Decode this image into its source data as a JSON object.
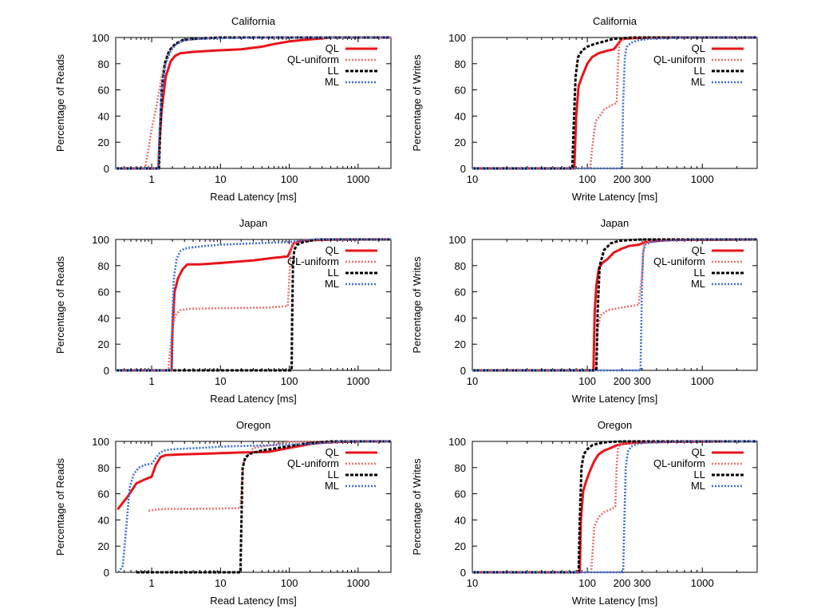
{
  "legend_placement": "top-right",
  "chart_data": [
    {
      "type": "line",
      "title": "California",
      "xlabel": "Read Latency [ms]",
      "ylabel": "Percentage of Reads",
      "xscale": "log",
      "xlim": [
        0.3,
        3000
      ],
      "ylim": [
        0,
        100
      ],
      "xticks": [
        1,
        10,
        100,
        1000
      ],
      "xtick_labels": [
        "1",
        "10",
        "100",
        "1000"
      ],
      "yticks": [
        0,
        20,
        40,
        60,
        80,
        100
      ],
      "ytick_labels": [
        "0",
        "20",
        "40",
        "60",
        "80",
        "100"
      ],
      "series": [
        {
          "name": "QL",
          "color": "#e8141b",
          "style": "solid",
          "x": [
            0.3,
            1.25,
            1.3,
            1.4,
            1.6,
            1.9,
            2.2,
            2.6,
            4,
            8,
            20,
            40,
            60,
            100,
            150,
            250,
            400,
            3000
          ],
          "y": [
            0,
            0,
            20,
            45,
            70,
            82,
            86,
            88,
            89,
            90,
            91,
            93,
            95,
            97,
            98,
            99,
            100,
            100
          ]
        },
        {
          "name": "QL-uniform",
          "color": "#f07070",
          "style": "dotted",
          "x": [
            0.3,
            0.8,
            0.9,
            1.0,
            1.2,
            1.4,
            1.6,
            1.8,
            2.2,
            3,
            5,
            10,
            3000
          ],
          "y": [
            0,
            0,
            15,
            30,
            50,
            70,
            82,
            90,
            95,
            98,
            99,
            100,
            100
          ]
        },
        {
          "name": "LL",
          "color": "#000000",
          "style": "dashed",
          "x": [
            0.3,
            1.28,
            1.33,
            1.4,
            1.55,
            1.8,
            2.2,
            2.8,
            4,
            6,
            10,
            3000
          ],
          "y": [
            0,
            0,
            30,
            60,
            80,
            90,
            95,
            98,
            99,
            99.5,
            100,
            100
          ]
        },
        {
          "name": "ML",
          "color": "#3a6fd8",
          "style": "dotted",
          "x": [
            0.3,
            1.25,
            1.3,
            1.4,
            1.6,
            1.9,
            2.3,
            3,
            5,
            10,
            50,
            3000
          ],
          "y": [
            0,
            0,
            30,
            60,
            80,
            90,
            95,
            98,
            99,
            99.5,
            100,
            100
          ]
        }
      ]
    },
    {
      "type": "line",
      "title": "California",
      "xlabel": "Write Latency [ms]",
      "ylabel": "Percentage of Writes",
      "xscale": "log",
      "xlim": [
        10,
        3000
      ],
      "ylim": [
        0,
        100
      ],
      "xticks": [
        10,
        100,
        200,
        300,
        1000
      ],
      "xtick_labels": [
        "10",
        "100",
        "200",
        "300",
        "1000"
      ],
      "yticks": [
        0,
        20,
        40,
        60,
        80,
        100
      ],
      "ytick_labels": [
        "0",
        "20",
        "40",
        "60",
        "80",
        "100"
      ],
      "series": [
        {
          "name": "QL",
          "color": "#e8141b",
          "style": "solid",
          "x": [
            10,
            77,
            80,
            84,
            90,
            100,
            110,
            125,
            150,
            170,
            185,
            200,
            260,
            350,
            600,
            3000
          ],
          "y": [
            0,
            0,
            40,
            63,
            70,
            80,
            85,
            88,
            90,
            91,
            95,
            99,
            99.5,
            99.8,
            100,
            100
          ]
        },
        {
          "name": "QL-uniform",
          "color": "#f07070",
          "style": "dotted",
          "x": [
            10,
            106,
            110,
            118,
            128,
            140,
            160,
            180,
            185,
            190,
            200,
            230,
            3000
          ],
          "y": [
            0,
            0,
            15,
            36,
            40,
            45,
            48,
            50,
            80,
            95,
            98,
            100,
            100
          ]
        },
        {
          "name": "LL",
          "color": "#000000",
          "style": "dashed",
          "x": [
            10,
            74,
            76,
            79,
            83,
            90,
            100,
            115,
            140,
            170,
            250,
            3000
          ],
          "y": [
            0,
            0,
            30,
            70,
            85,
            90,
            93,
            95,
            97,
            99,
            100,
            100
          ]
        },
        {
          "name": "ML",
          "color": "#3a6fd8",
          "style": "dotted",
          "x": [
            10,
            200,
            205,
            212,
            220,
            240,
            280,
            350,
            500,
            700,
            3000
          ],
          "y": [
            0,
            0,
            50,
            85,
            93,
            96,
            98,
            99,
            99.5,
            100,
            100
          ]
        }
      ]
    },
    {
      "type": "line",
      "title": "Japan",
      "xlabel": "Read Latency [ms]",
      "ylabel": "Percentage of Reads",
      "xscale": "log",
      "xlim": [
        0.3,
        3000
      ],
      "ylim": [
        0,
        100
      ],
      "xticks": [
        1,
        10,
        100,
        1000
      ],
      "xtick_labels": [
        "1",
        "10",
        "100",
        "1000"
      ],
      "yticks": [
        0,
        20,
        40,
        60,
        80,
        100
      ],
      "ytick_labels": [
        "0",
        "20",
        "40",
        "60",
        "80",
        "100"
      ],
      "series": [
        {
          "name": "QL",
          "color": "#e8141b",
          "style": "solid",
          "x": [
            0.3,
            1.95,
            2.0,
            2.15,
            2.4,
            2.8,
            3.3,
            5,
            10,
            30,
            60,
            95,
            105,
            115,
            150,
            250,
            500,
            3000
          ],
          "y": [
            0,
            0,
            30,
            60,
            70,
            77,
            81,
            81,
            82,
            84,
            86,
            87,
            92,
            97,
            99,
            99.5,
            100,
            100
          ]
        },
        {
          "name": "QL-uniform",
          "color": "#f07070",
          "style": "dotted",
          "x": [
            0.3,
            1.75,
            1.85,
            2.0,
            2.2,
            2.6,
            3.5,
            10,
            50,
            95,
            100,
            105,
            110,
            130,
            200,
            3000
          ],
          "y": [
            0,
            0,
            15,
            32,
            42,
            46,
            47,
            47.5,
            48,
            49,
            70,
            90,
            96,
            98,
            99.5,
            100
          ]
        },
        {
          "name": "LL",
          "color": "#000000",
          "style": "dashed",
          "x": [
            0.3,
            108,
            110,
            113,
            118,
            130,
            160,
            250,
            3000
          ],
          "y": [
            0,
            0,
            40,
            80,
            92,
            96,
            98,
            100,
            100
          ]
        },
        {
          "name": "ML",
          "color": "#3a6fd8",
          "style": "dotted",
          "x": [
            0.3,
            1.95,
            2.0,
            2.1,
            2.3,
            2.6,
            3,
            4,
            6,
            10,
            30,
            100,
            200,
            3000
          ],
          "y": [
            0,
            0,
            40,
            70,
            85,
            91,
            93,
            94,
            95,
            96,
            97,
            98,
            100,
            100
          ]
        }
      ]
    },
    {
      "type": "line",
      "title": "Japan",
      "xlabel": "Write Latency [ms]",
      "ylabel": "Percentage of Writes",
      "xscale": "log",
      "xlim": [
        10,
        3000
      ],
      "ylim": [
        0,
        100
      ],
      "xticks": [
        10,
        100,
        200,
        300,
        1000
      ],
      "xtick_labels": [
        "10",
        "100",
        "200",
        "300",
        "1000"
      ],
      "yticks": [
        0,
        20,
        40,
        60,
        80,
        100
      ],
      "ytick_labels": [
        "0",
        "20",
        "40",
        "60",
        "80",
        "100"
      ],
      "series": [
        {
          "name": "QL",
          "color": "#e8141b",
          "style": "solid",
          "x": [
            10,
            113,
            116,
            120,
            126,
            135,
            150,
            170,
            200,
            230,
            280,
            320,
            500,
            3000
          ],
          "y": [
            0,
            0,
            45,
            65,
            78,
            82,
            85,
            90,
            93,
            95,
            96,
            98,
            99.5,
            100
          ]
        },
        {
          "name": "QL-uniform",
          "color": "#f07070",
          "style": "dotted",
          "x": [
            10,
            118,
            122,
            130,
            150,
            200,
            280,
            300,
            310,
            320,
            340,
            400,
            3000
          ],
          "y": [
            0,
            0,
            30,
            42,
            46,
            48,
            50,
            75,
            95,
            97,
            98,
            99.5,
            100
          ]
        },
        {
          "name": "LL",
          "color": "#000000",
          "style": "dashed",
          "x": [
            10,
            120,
            123,
            128,
            140,
            160,
            190,
            230,
            300,
            3000
          ],
          "y": [
            0,
            0,
            45,
            80,
            92,
            97,
            99,
            99.5,
            100,
            100
          ]
        },
        {
          "name": "ML",
          "color": "#3a6fd8",
          "style": "dotted",
          "x": [
            10,
            290,
            298,
            305,
            320,
            360,
            450,
            650,
            1000,
            3000
          ],
          "y": [
            0,
            0,
            60,
            90,
            96,
            98,
            99,
            99.5,
            100,
            100
          ]
        }
      ]
    },
    {
      "type": "line",
      "title": "Oregon",
      "xlabel": "Read Latency [ms]",
      "ylabel": "Percentage of Reads",
      "xscale": "log",
      "xlim": [
        0.3,
        3000
      ],
      "ylim": [
        0,
        100
      ],
      "xticks": [
        1,
        10,
        100,
        1000
      ],
      "xtick_labels": [
        "1",
        "10",
        "100",
        "1000"
      ],
      "yticks": [
        0,
        20,
        40,
        60,
        80,
        100
      ],
      "ytick_labels": [
        "0",
        "20",
        "40",
        "60",
        "80",
        "100"
      ],
      "series": [
        {
          "name": "QL",
          "color": "#e8141b",
          "style": "solid",
          "x": [
            0.32,
            0.45,
            0.6,
            0.8,
            1.0,
            1.15,
            1.35,
            1.6,
            2.5,
            5,
            10,
            20,
            50,
            100,
            200,
            300,
            500,
            1000,
            3000
          ],
          "y": [
            48,
            58,
            68,
            71,
            73,
            82,
            88,
            89.5,
            90,
            90.5,
            91,
            91.5,
            92,
            95,
            98,
            99,
            99.5,
            100,
            100
          ]
        },
        {
          "name": "QL-uniform",
          "color": "#f07070",
          "style": "dotted",
          "x": [
            0.9,
            1.2,
            1.6,
            3,
            10,
            19.5,
            20.5,
            22,
            30,
            100,
            3000
          ],
          "y": [
            47,
            48,
            48.5,
            48.5,
            48.7,
            49,
            70,
            85,
            95,
            99.5,
            100
          ]
        },
        {
          "name": "LL",
          "color": "#000000",
          "style": "dashed",
          "x": [
            0.6,
            10,
            19.5,
            20,
            21,
            23,
            28,
            40,
            70,
            150,
            400,
            3000
          ],
          "y": [
            0,
            0,
            0,
            30,
            80,
            88,
            91,
            93,
            95,
            98,
            100,
            100
          ]
        },
        {
          "name": "ML",
          "color": "#3a6fd8",
          "style": "dotted",
          "x": [
            0.33,
            0.38,
            0.42,
            0.48,
            0.55,
            0.65,
            0.8,
            1.0,
            1.3,
            1.5,
            2,
            5,
            10,
            50,
            200,
            600,
            3000
          ],
          "y": [
            0,
            5,
            30,
            65,
            75,
            80,
            82,
            83,
            91,
            93,
            94,
            95,
            96,
            97,
            98,
            100,
            100
          ]
        }
      ]
    },
    {
      "type": "line",
      "title": "Oregon",
      "xlabel": "Write Latency [ms]",
      "ylabel": "Percentage of Writes",
      "xscale": "log",
      "xlim": [
        10,
        3000
      ],
      "ylim": [
        0,
        100
      ],
      "xticks": [
        10,
        100,
        200,
        300,
        1000
      ],
      "xtick_labels": [
        "10",
        "100",
        "200",
        "300",
        "1000"
      ],
      "yticks": [
        0,
        20,
        40,
        60,
        80,
        100
      ],
      "ytick_labels": [
        "0",
        "20",
        "40",
        "60",
        "80",
        "100"
      ],
      "series": [
        {
          "name": "QL",
          "color": "#e8141b",
          "style": "solid",
          "x": [
            10,
            86,
            88,
            92,
            98,
            106,
            115,
            125,
            140,
            160,
            180,
            200,
            260,
            400,
            1500
          ],
          "y": [
            0,
            0,
            40,
            62,
            70,
            78,
            85,
            90,
            93,
            95,
            97,
            98,
            99,
            99.5,
            100
          ]
        },
        {
          "name": "QL-uniform",
          "color": "#f07070",
          "style": "dotted",
          "x": [
            10,
            108,
            111,
            115,
            125,
            140,
            160,
            175,
            180,
            185,
            195,
            220,
            400,
            3000
          ],
          "y": [
            0,
            0,
            15,
            35,
            42,
            46,
            48,
            50,
            80,
            95,
            98,
            99,
            99.5,
            100
          ]
        },
        {
          "name": "LL",
          "color": "#000000",
          "style": "dashed",
          "x": [
            10,
            84,
            86,
            89,
            93,
            100,
            110,
            125,
            150,
            200,
            3000
          ],
          "y": [
            0,
            0,
            40,
            80,
            90,
            94,
            97,
            98.5,
            99.5,
            100,
            100
          ]
        },
        {
          "name": "ML",
          "color": "#3a6fd8",
          "style": "dotted",
          "x": [
            10,
            205,
            210,
            216,
            225,
            240,
            270,
            320,
            450,
            800,
            3000
          ],
          "y": [
            0,
            0,
            40,
            80,
            92,
            96,
            98,
            99,
            99.5,
            100,
            100
          ]
        }
      ]
    }
  ]
}
